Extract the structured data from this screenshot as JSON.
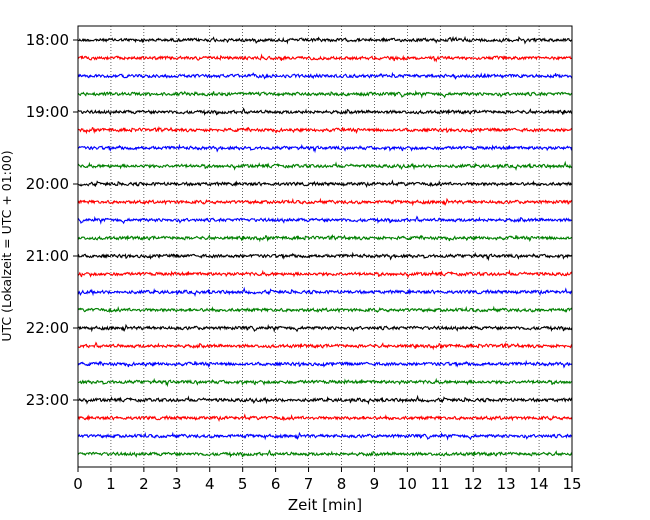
{
  "chart_data": {
    "type": "line",
    "title": "",
    "xlabel": "Zeit  [min]",
    "ylabel": "UTC (Lokalzeit = UTC + 01:00)",
    "xlim": [
      0,
      15
    ],
    "x_ticks": [
      "0",
      "1",
      "2",
      "3",
      "4",
      "5",
      "6",
      "7",
      "8",
      "9",
      "10",
      "11",
      "12",
      "13",
      "14",
      "15"
    ],
    "y_tick_labels": [
      "18:00",
      "19:00",
      "20:00",
      "21:00",
      "22:00",
      "23:00"
    ],
    "start_time": "18:00",
    "trace_interval_minutes": 15,
    "trace_count": 24,
    "trace_colors": [
      "#000000",
      "#ff0000",
      "#0000ff",
      "#008000"
    ],
    "grid": "vertical dotted",
    "series_note": "seismograph helicorder: one trace per 15-minute interval, low-amplitude noise throughout"
  }
}
